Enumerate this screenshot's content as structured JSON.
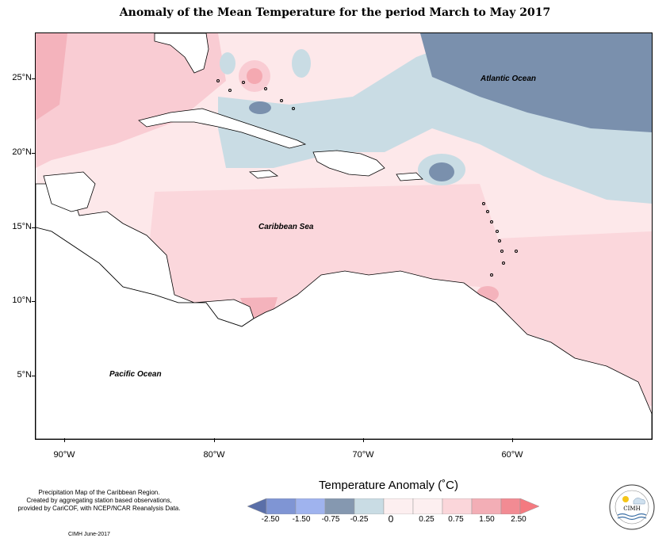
{
  "title": "Anomaly of the Mean Temperature for the period March to May 2017",
  "labels": {
    "atlantic": "Atlantic Ocean",
    "caribbean": "Caribbean Sea",
    "pacific": "Pacific Ocean"
  },
  "axes": {
    "lat": [
      "25°N",
      "20°N",
      "15°N",
      "10°N",
      "5°N"
    ],
    "lon": [
      "90°W",
      "80°W",
      "70°W",
      "60°W"
    ]
  },
  "footnote": {
    "line1": "Precipitation Map of the Caribbean Region.",
    "line2": "Created by aggregating station based observations,",
    "line3": "provided by CariCOF, with NCEP/NCAR Reanalysis Data.",
    "credit": "CIMH June-2017"
  },
  "legend": {
    "title": "Temperature Anomaly (˚C)",
    "ticks": [
      "-2.50",
      "-1.50",
      "-0.75",
      "-0.25",
      "0",
      "0.25",
      "0.75",
      "1.50",
      "2.50"
    ],
    "colors": [
      "#5a6fa8",
      "#7f95d4",
      "#9fb3ee",
      "#8598b0",
      "#c9dce4",
      "#fdeff0",
      "#fbd6da",
      "#f3aeb6",
      "#f28b93",
      "#f47a80"
    ]
  },
  "logo": {
    "text": "CIMH"
  }
}
